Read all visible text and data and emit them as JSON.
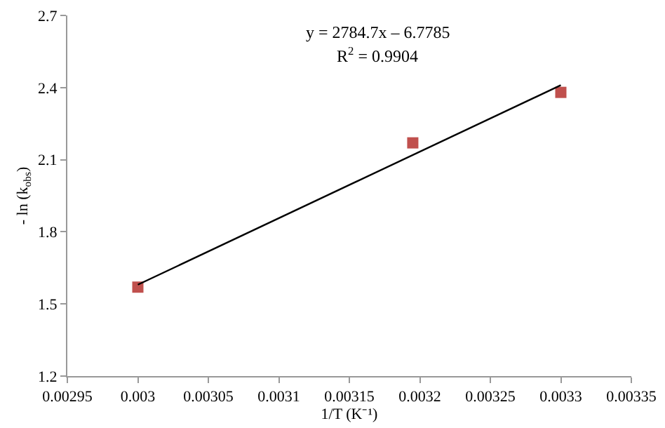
{
  "chart_data": {
    "type": "scatter",
    "xlabel": "1/T (K⁻¹)",
    "ylabel": "- ln (k$_{obs}$)",
    "annotations": [
      "y = 2784.7x – 6.7785",
      "R$^{2}$ = 0.9904"
    ],
    "xlim": [
      0.00295,
      0.00335
    ],
    "xticks": [
      0.00295,
      0.003,
      0.00305,
      0.0031,
      0.00315,
      0.0032,
      0.00325,
      0.0033,
      0.00335
    ],
    "ylim": [
      1.2,
      2.7
    ],
    "yticks": [
      1.2,
      1.5,
      1.8,
      2.1,
      2.4,
      2.7
    ],
    "series": [
      {
        "marker": "square",
        "color": "#c0504d",
        "x": [
          0.003,
          0.003195,
          0.0033
        ],
        "values": [
          1.57,
          2.17,
          2.38
        ]
      },
      {
        "type": "line",
        "marker": "none",
        "line_style": "solid",
        "color": "#000000",
        "x": [
          0.003,
          0.0033
        ],
        "values": [
          1.58,
          2.41
        ]
      }
    ]
  }
}
